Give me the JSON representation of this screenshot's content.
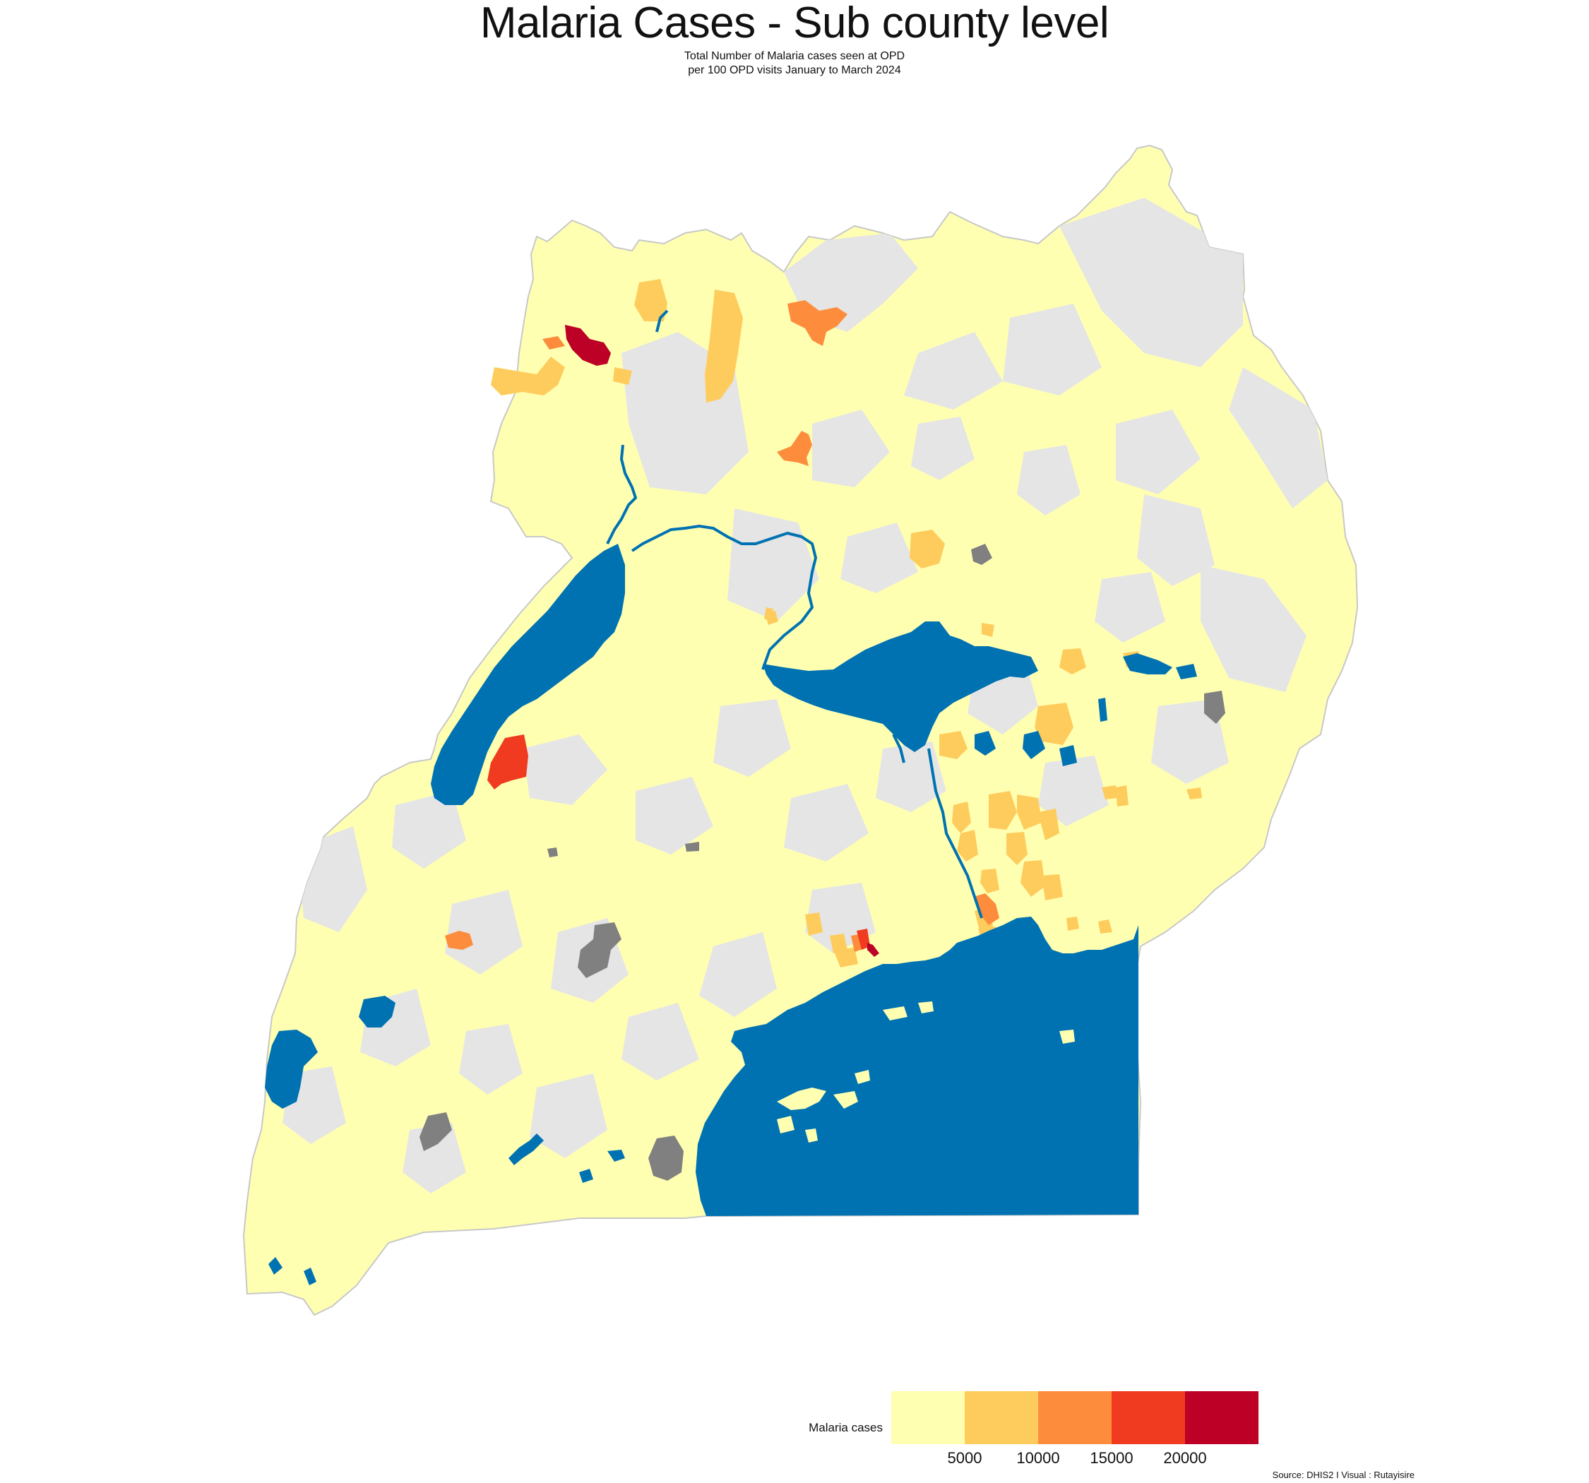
{
  "title": "Malaria Cases - Sub county level",
  "subtitle": "Total Number of Malaria cases seen at OPD\n per 100 OPD visits January to March 2024",
  "legend": {
    "title": "Malaria cases",
    "colors": [
      "#ffffb2",
      "#fecc5c",
      "#fd8d3c",
      "#f03b20",
      "#bd0026"
    ],
    "ticks": [
      "5000",
      "10000",
      "15000",
      "20000"
    ]
  },
  "source": "Source: DHIS2  I Visual : Rutayisire",
  "colors": {
    "no_data": "#e5e5e5",
    "missing": "#808080",
    "water": "#0072b2",
    "border": "#c8c8c8"
  }
}
